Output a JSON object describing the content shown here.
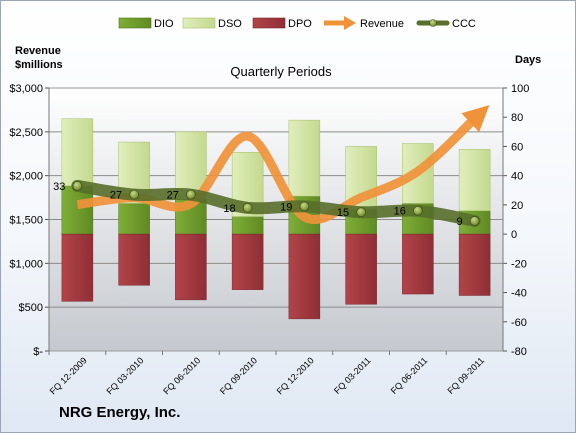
{
  "company": "NRG Energy, Inc.",
  "chart_data": {
    "type": "bar",
    "title": "Quarterly Periods",
    "left_axis_label": [
      "Revenue",
      "$millions"
    ],
    "right_axis_label": "Days",
    "categories": [
      "FQ 12-2009",
      "FQ 03-2010",
      "FQ 06-2010",
      "FQ 09-2010",
      "FQ 12-2010",
      "FQ 03-2011",
      "FQ 06-2011",
      "FQ 09-2011"
    ],
    "left_axis": {
      "min": 0,
      "max": 3000,
      "step": 500,
      "tick_labels": [
        "$-",
        "$500",
        "$1,000",
        "$1,500",
        "$2,000",
        "$2,500",
        "$3,000"
      ]
    },
    "right_axis": {
      "min": -80,
      "max": 100,
      "step": 20,
      "tick_labels": [
        "-80",
        "-60",
        "-40",
        "-20",
        "0",
        "20",
        "40",
        "60",
        "80",
        "100"
      ]
    },
    "legend": [
      "DIO",
      "DSO",
      "DPO",
      "Revenue",
      "CCC"
    ],
    "legend_position": "top",
    "colors": {
      "DIO": "#6f9d2b",
      "DSO": "#d4e5a8",
      "DPO": "#a03a3f",
      "Revenue": "#f0923a",
      "CCC": "#586e2a"
    },
    "series": [
      {
        "name": "DIO",
        "axis": "right",
        "values": [
          33,
          21,
          24,
          12,
          26,
          17,
          21,
          16
        ]
      },
      {
        "name": "DSO",
        "axis": "right",
        "values": [
          46,
          42,
          46,
          44,
          52,
          43,
          41,
          42
        ]
      },
      {
        "name": "DPO",
        "axis": "right",
        "values": [
          -46,
          -35,
          -45,
          -38,
          -58,
          -48,
          -41,
          -42
        ]
      },
      {
        "name": "Revenue",
        "axis": "left",
        "values": [
          1670,
          1750,
          1680,
          2450,
          1530,
          1750,
          2050,
          2650
        ]
      },
      {
        "name": "CCC",
        "axis": "right",
        "values": [
          33,
          27,
          27,
          18,
          19,
          15,
          16,
          9
        ]
      }
    ],
    "ccc_labels": [
      "33",
      "27",
      "27",
      "18",
      "19",
      "15",
      "16",
      "9"
    ],
    "grid": true
  }
}
